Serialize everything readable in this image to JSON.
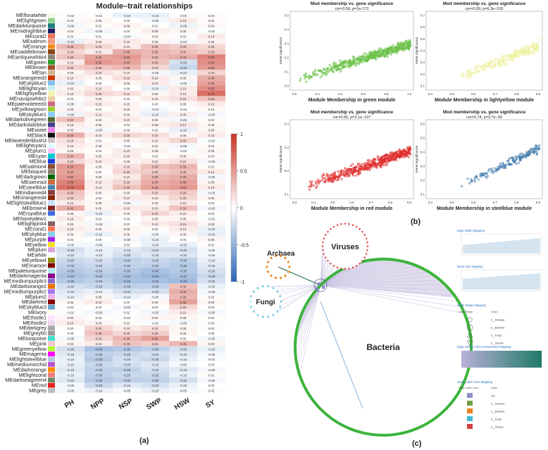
{
  "panel_a": {
    "title": "Module–trait relationships",
    "label": "(a)",
    "traits": [
      "PH",
      "NPP",
      "NSP",
      "SWP",
      "HSW",
      "SY"
    ],
    "modules": [
      {
        "name": "MEfloralwhite",
        "color": "#f8f4ea",
        "r": [
          -0.02,
          -0.01,
          -0.1,
          -0.1,
          -0.02,
          0.03
        ]
      },
      {
        "name": "MElightgreen",
        "color": "#8fd58f",
        "r": [
          0.03,
          0.05,
          0.0,
          -0.05,
          0.1,
          0.02
        ]
      },
      {
        "name": "MEdarkturquoise",
        "color": "#1f7f7f",
        "r": [
          -0.05,
          0.02,
          0.06,
          0.01,
          -0.08,
          0.04
        ]
      },
      {
        "name": "MEmidnightblue",
        "color": "#1a1a60",
        "r": [
          0.04,
          -0.06,
          0.02,
          0.08,
          0.05,
          -0.02
        ]
      },
      {
        "name": "MEcoral2",
        "color": "#e8725a",
        "r": [
          0.02,
          0.01,
          -0.04,
          0.03,
          0.02,
          0.1
        ]
      },
      {
        "name": "MEsalmon",
        "color": "#f09a80",
        "r": [
          -0.1,
          0.08,
          0.1,
          0.05,
          -0.04,
          0.06
        ]
      },
      {
        "name": "MEorange",
        "color": "#f28c20",
        "r": [
          0.35,
          0.2,
          0.1,
          0.3,
          0.25,
          0.2
        ]
      },
      {
        "name": "MEsaddlebrown",
        "color": "#8b4513",
        "r": [
          0.2,
          0.1,
          0.4,
          0.35,
          0.3,
          0.25
        ]
      },
      {
        "name": "MEantiquewhite4",
        "color": "#8b8378",
        "r": [
          0.3,
          0.45,
          0.5,
          0.35,
          0.4,
          0.6
        ]
      },
      {
        "name": "MEgreen",
        "color": "#2ea02e",
        "r": [
          0.1,
          0.5,
          0.45,
          0.3,
          -0.2,
          0.55
        ]
      },
      {
        "name": "MEbrown",
        "color": "#a0522d",
        "r": [
          0.25,
          0.3,
          0.35,
          0.2,
          -0.25,
          0.5
        ]
      },
      {
        "name": "MEtan",
        "color": "#d2b48c",
        "r": [
          0.05,
          0.15,
          0.1,
          -0.05,
          -0.1,
          0.2
        ]
      },
      {
        "name": "MEorangered3",
        "color": "#cd3700",
        "r": [
          0.1,
          0.05,
          0.15,
          0.1,
          0.05,
          0.4
        ]
      },
      {
        "name": "MEskyblue2",
        "color": "#7ec0ee",
        "r": [
          -0.1,
          0.0,
          0.05,
          0.1,
          -0.05,
          0.45
        ]
      },
      {
        "name": "MElightcyan",
        "color": "#cdeeee",
        "r": [
          0.05,
          0.1,
          0.0,
          -0.1,
          0.1,
          0.55
        ]
      },
      {
        "name": "MElightyellow",
        "color": "#f5f5b0",
        "r": [
          0.1,
          0.2,
          0.15,
          0.05,
          0.1,
          0.7
        ]
      },
      {
        "name": "MEnavajowhite2",
        "color": "#eecfa1",
        "r": [
          0.02,
          0.05,
          0.02,
          0.1,
          0.15,
          0.3
        ]
      },
      {
        "name": "MEpalevioletred3",
        "color": "#cd6889",
        "r": [
          -0.05,
          0.1,
          0.05,
          0.0,
          0.05,
          0.1
        ]
      },
      {
        "name": "MEyellowgreen",
        "color": "#9acd32",
        "r": [
          0.05,
          0.02,
          0.06,
          -0.04,
          -0.02,
          0.04
        ]
      },
      {
        "name": "MEskyblue1",
        "color": "#87ceff",
        "r": [
          -0.08,
          0.1,
          0.05,
          -0.1,
          0.08,
          -0.05
        ]
      },
      {
        "name": "MEdarkolivegreen",
        "color": "#556b2f",
        "r": [
          0.3,
          0.05,
          0.1,
          0.05,
          -0.05,
          0.02
        ]
      },
      {
        "name": "MEdarkslateblue",
        "color": "#483d8b",
        "r": [
          0.1,
          0.05,
          0.02,
          0.08,
          0.12,
          0.05
        ]
      },
      {
        "name": "MEviolet",
        "color": "#ee82ee",
        "r": [
          0.05,
          -0.05,
          0.04,
          0.02,
          -0.1,
          0.05
        ]
      },
      {
        "name": "MEblack",
        "color": "#111111",
        "r": [
          0.4,
          0.1,
          0.2,
          0.15,
          0.05,
          0.1
        ]
      },
      {
        "name": "MElavenderblush3",
        "color": "#cdc1c5",
        "r": [
          0.15,
          0.02,
          0.05,
          0.1,
          0.2,
          -0.02
        ]
      },
      {
        "name": "MElightcyan1",
        "color": "#e0ffff",
        "r": [
          0.1,
          0.05,
          -0.02,
          0.04,
          -0.05,
          0.02
        ]
      },
      {
        "name": "MEplum1",
        "color": "#ffbbff",
        "r": [
          0.05,
          0.02,
          0.1,
          0.06,
          -0.02,
          0.05
        ]
      },
      {
        "name": "MEcyan",
        "color": "#00cdcd",
        "r": [
          0.35,
          0.05,
          0.1,
          0.02,
          0.05,
          0.03
        ]
      },
      {
        "name": "MEblue",
        "color": "#1e3cdc",
        "r": [
          0.2,
          0.1,
          0.05,
          0.1,
          0.15,
          -0.05
        ]
      },
      {
        "name": "MEsalmon4",
        "color": "#8b4c39",
        "r": [
          0.5,
          0.05,
          0.15,
          0.3,
          0.35,
          0.02
        ]
      },
      {
        "name": "MEbisque4",
        "color": "#8b7d6b",
        "r": [
          0.45,
          0.02,
          0.2,
          0.25,
          0.3,
          0.1
        ]
      },
      {
        "name": "MEdarkgreen",
        "color": "#006400",
        "r": [
          0.5,
          0.05,
          0.1,
          0.35,
          0.4,
          -0.05
        ]
      },
      {
        "name": "MEsienna3",
        "color": "#cd6839",
        "r": [
          0.6,
          0.1,
          0.2,
          0.4,
          0.45,
          0.05
        ]
      },
      {
        "name": "MEsteelblue",
        "color": "#4682b4",
        "r": [
          0.7,
          0.1,
          0.3,
          0.45,
          0.5,
          0.1
        ]
      },
      {
        "name": "MEindianred4",
        "color": "#8b3a3a",
        "r": [
          0.3,
          0.05,
          0.05,
          0.2,
          0.25,
          -0.05
        ]
      },
      {
        "name": "MEorangered4",
        "color": "#8b2500",
        "r": [
          0.25,
          0.02,
          0.1,
          0.1,
          0.2,
          0.05
        ]
      },
      {
        "name": "MElightsteelblue1",
        "color": "#cae1ff",
        "r": [
          0.1,
          0.05,
          -0.05,
          0.05,
          0.1,
          0.02
        ]
      },
      {
        "name": "MEbrown4",
        "color": "#8b2323",
        "r": [
          0.4,
          0.05,
          0.1,
          0.1,
          0.3,
          -0.05
        ]
      },
      {
        "name": "MEroyalblue",
        "color": "#4169e1",
        "r": [
          0.05,
          -0.1,
          0.05,
          0.2,
          0.1,
          0.02
        ]
      },
      {
        "name": "MEhoneydew1",
        "color": "#f0fff0",
        "r": [
          0.1,
          0.02,
          0.0,
          0.05,
          0.05,
          -0.02
        ]
      },
      {
        "name": "MElightpink4",
        "color": "#8b5f65",
        "r": [
          0.05,
          -0.05,
          0.02,
          0.1,
          0.15,
          0.05
        ]
      },
      {
        "name": "MEcoral1",
        "color": "#ff7256",
        "r": [
          0.1,
          0.05,
          0.05,
          0.02,
          0.1,
          -0.1
        ]
      },
      {
        "name": "MEskyblue",
        "color": "#87ceeb",
        "r": [
          0.05,
          -0.1,
          0.05,
          -0.05,
          0.05,
          -0.1
        ]
      },
      {
        "name": "MEpurple",
        "color": "#a020f0",
        "r": [
          0.02,
          0.0,
          -0.05,
          -0.1,
          0.0,
          0.05
        ]
      },
      {
        "name": "MEyellow",
        "color": "#f0e020",
        "r": [
          -0.05,
          -0.05,
          0.02,
          -0.1,
          -0.1,
          0.02
        ]
      },
      {
        "name": "MEplum",
        "color": "#dda0dd",
        "r": [
          -0.2,
          -0.1,
          -0.15,
          -0.2,
          -0.2,
          -0.05
        ]
      },
      {
        "name": "MEwhite",
        "color": "#fafafa",
        "r": [
          -0.15,
          -0.1,
          -0.2,
          -0.15,
          -0.15,
          -0.05
        ]
      },
      {
        "name": "MEyellow4",
        "color": "#8b8b00",
        "r": [
          -0.25,
          -0.2,
          -0.3,
          -0.25,
          -0.3,
          -0.1
        ]
      },
      {
        "name": "MEmaroon",
        "color": "#800000",
        "r": [
          -0.3,
          -0.25,
          -0.3,
          -0.3,
          -0.35,
          -0.15
        ]
      },
      {
        "name": "MEpaleturquoise",
        "color": "#afeeee",
        "r": [
          -0.35,
          -0.3,
          -0.35,
          -0.4,
          -0.35,
          -0.2
        ]
      },
      {
        "name": "MEdarkmagenta",
        "color": "#8b008b",
        "r": [
          -0.4,
          -0.35,
          -0.4,
          -0.45,
          -0.4,
          -0.25
        ]
      },
      {
        "name": "MEmediumpurple3",
        "color": "#8968cd",
        "r": [
          -0.35,
          -0.3,
          -0.4,
          -0.4,
          -0.45,
          -0.2
        ]
      },
      {
        "name": "MEdarkorange2",
        "color": "#ee7600",
        "r": [
          -0.2,
          -0.25,
          -0.3,
          -0.3,
          0.3,
          -0.1
        ]
      },
      {
        "name": "MEmediumpurple2",
        "color": "#9f79ee",
        "r": [
          -0.15,
          -0.1,
          -0.2,
          -0.2,
          0.4,
          -0.05
        ]
      },
      {
        "name": "MEplum2",
        "color": "#eeaeee",
        "r": [
          -0.1,
          0.05,
          -0.1,
          -0.05,
          0.35,
          0.02
        ]
      },
      {
        "name": "MEdarkred",
        "color": "#8b0000",
        "r": [
          0.05,
          0.1,
          0.0,
          0.05,
          0.45,
          0.05
        ]
      },
      {
        "name": "MEskyblue3",
        "color": "#6ca6cd",
        "r": [
          0.02,
          0.0,
          -0.05,
          0.02,
          0.2,
          0.02
        ]
      },
      {
        "name": "MEivory",
        "color": "#fffff0",
        "r": [
          -0.02,
          -0.05,
          0.02,
          -0.05,
          0.1,
          -0.05
        ]
      },
      {
        "name": "MEthistle1",
        "color": "#ffe1ff",
        "r": [
          0.05,
          0.02,
          -0.02,
          0.05,
          0.05,
          0.02
        ]
      },
      {
        "name": "MEthistle2",
        "color": "#eed2ee",
        "r": [
          0.1,
          0.05,
          0.02,
          -0.02,
          -0.05,
          0.02
        ]
      },
      {
        "name": "MEdarkgrey",
        "color": "#a9a9a9",
        "r": [
          0.02,
          0.2,
          0.1,
          0.15,
          0.05,
          0.02
        ]
      },
      {
        "name": "MEgrey60",
        "color": "#999999",
        "r": [
          0.0,
          0.3,
          0.2,
          0.25,
          0.05,
          0.0
        ]
      },
      {
        "name": "MEturquoise",
        "color": "#40e0d0",
        "r": [
          -0.05,
          0.2,
          0.35,
          0.45,
          0.02,
          -0.05
        ]
      },
      {
        "name": "MEpink",
        "color": "#ffc0cb",
        "r": [
          0.05,
          0.1,
          0.3,
          0.25,
          0.35,
          0.05
        ]
      },
      {
        "name": "MEgreenyellow",
        "color": "#adff2f",
        "r": [
          -0.2,
          -0.4,
          -0.35,
          -0.3,
          -0.2,
          -0.1
        ]
      },
      {
        "name": "MEmagenta",
        "color": "#ff00ff",
        "r": [
          -0.15,
          -0.3,
          -0.25,
          -0.2,
          -0.15,
          -0.05
        ]
      },
      {
        "name": "MElightsteelblue",
        "color": "#b0c4de",
        "r": [
          -0.1,
          -0.35,
          -0.2,
          -0.25,
          -0.1,
          -0.02
        ]
      },
      {
        "name": "MEmediumorchid",
        "color": "#ba55d3",
        "r": [
          -0.1,
          -0.25,
          -0.2,
          -0.15,
          -0.05,
          0.0
        ]
      },
      {
        "name": "MEdarkorange",
        "color": "#ff8c00",
        "r": [
          -0.15,
          -0.3,
          -0.3,
          -0.2,
          -0.15,
          -0.05
        ]
      },
      {
        "name": "MElightcoral",
        "color": "#f08080",
        "r": [
          -0.1,
          -0.3,
          -0.25,
          -0.25,
          -0.1,
          0.02
        ]
      },
      {
        "name": "MEdarkseagreen4",
        "color": "#698b69",
        "r": [
          -0.15,
          -0.35,
          -0.3,
          -0.3,
          -0.2,
          -0.05
        ]
      },
      {
        "name": "MEred",
        "color": "#e32020",
        "r": [
          -0.05,
          -0.25,
          -0.15,
          -0.2,
          -0.1,
          0.0
        ]
      },
      {
        "name": "MEgrey",
        "color": "#bebebe",
        "r": [
          -0.05,
          -0.1,
          -0.05,
          -0.1,
          -0.05,
          0.02
        ]
      }
    ],
    "colorbar_ticks": [
      "1",
      "0.5",
      "0",
      "-0.5",
      "-1"
    ]
  },
  "panel_b": {
    "label": "(b)",
    "scatters": [
      {
        "title": "Mod membership vs. gene significance",
        "stats": "cor=0.58, p=1e-173",
        "xlabel": "Module Membership in green module",
        "ylabel": "Gene significance",
        "color": "#6cc24a",
        "x_ticks": [
          "0.0",
          "0.2",
          "0.4",
          "0.6",
          "0.8",
          "1.0"
        ],
        "y_ticks": [
          "0.0",
          "0.1",
          "0.2",
          "0.3",
          "0.4",
          "0.5"
        ],
        "n": 520,
        "slope": 0.5,
        "spread": 0.09,
        "xmin": 0.05
      },
      {
        "title": "Mod membership vs. gene significance",
        "stats": "cor=0.69, p=6.3e−100",
        "xlabel": "Module Membership in lightyellow module",
        "ylabel": "Gene significance",
        "color": "#eef2a0",
        "x_ticks": [
          "0.4",
          "0.5",
          "0.6",
          "0.7",
          "0.8",
          "0.9"
        ],
        "y_ticks": [
          "0.1",
          "0.2",
          "0.3",
          "0.4",
          "0.5",
          "0.6",
          "0.7"
        ],
        "n": 260,
        "slope": 0.6,
        "spread": 0.1,
        "xmin": 0.25
      },
      {
        "title": "Mod membership vs. gene significance",
        "stats": "cor=0.56, p=3.1e−107",
        "xlabel": "Module Membership in red module",
        "ylabel": "Gene significance",
        "color": "#e03030",
        "x_ticks": [
          "0.3",
          "0.4",
          "0.5",
          "0.6",
          "0.7",
          "0.8",
          "0.9"
        ],
        "y_ticks": [
          "0.1",
          "0.2",
          "0.3",
          "0.4"
        ],
        "n": 520,
        "slope": 0.55,
        "spread": 0.1,
        "xmin": 0.1
      },
      {
        "title": "Mod membership vs. gene significance",
        "stats": "cor=0.74, p=3.7e−60",
        "xlabel": "Module Membership in steelblue module",
        "ylabel": "Gene significance",
        "color": "#4a80b0",
        "x_ticks": [
          "0.4",
          "0.5",
          "0.6",
          "0.7",
          "0.8",
          "0.9"
        ],
        "y_ticks": [
          "0.1",
          "0.2",
          "0.3",
          "0.4",
          "0.5",
          "0.6"
        ],
        "n": 180,
        "slope": 0.7,
        "spread": 0.08,
        "xmin": 0.25
      }
    ]
  },
  "panel_c": {
    "label": "(c)",
    "nodes": {
      "archaea": "Archaea",
      "viruses": "Viruses",
      "fungi": "Fungi",
      "bacteria": "Bacteria"
    },
    "legend": {
      "edge_width_title": "Edge Width Mapping",
      "node_size_title": "Node Size Mapping",
      "node_shape_title": "Node Shape Mapping",
      "node_shape_cols": [
        "Node Shape",
        "Class"
      ],
      "node_shape_rows": [
        "k__Archaea",
        "k__Bacteria",
        "k__Fungi",
        "k__Viruses"
      ],
      "edge_color_title": "Edge Stroke Color (Unselected) Mapping",
      "label_color_title": "Node Label Color Mapping",
      "label_color_cols": [
        "Node Label Color",
        "Class"
      ],
      "label_color_rows": [
        {
          "color": "#9090c8",
          "class": "text"
        },
        {
          "color": "#70a040",
          "class": "k__Archaea"
        },
        {
          "color": "#e88020",
          "class": "k__Bacteria"
        },
        {
          "color": "#40b8d0",
          "class": "k__Fungi"
        },
        {
          "color": "#d04040",
          "class": "k__Viruses"
        }
      ]
    }
  }
}
